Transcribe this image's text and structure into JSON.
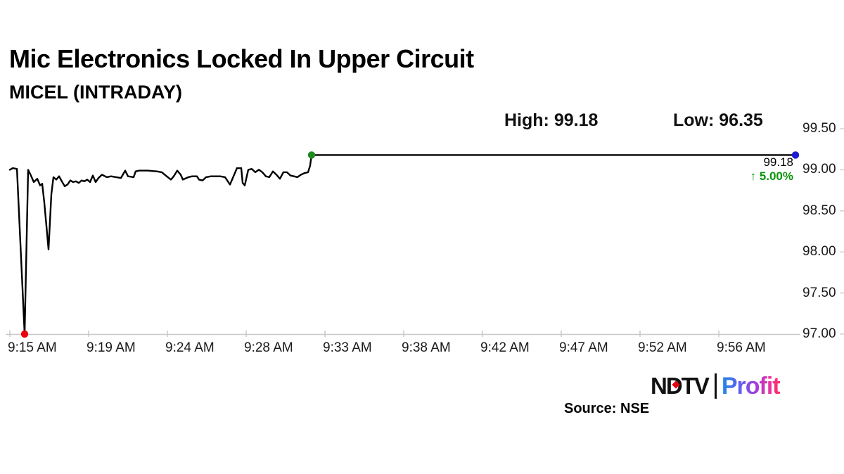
{
  "header": {
    "title": "Mic Electronics Locked In Upper Circuit",
    "subtitle": "MICEL (INTRADAY)",
    "high_label": "High: 99.18",
    "low_label": "Low: 96.35"
  },
  "annotation": {
    "price": "99.18",
    "change": "↑ 5.00%",
    "change_color": "#0c930c"
  },
  "footer": {
    "source": "Source: NSE",
    "logo": {
      "ndtv": "NDTV",
      "profit": "Profit",
      "dot_color": "#e8000d"
    }
  },
  "chart_data": {
    "type": "line",
    "title": "MICEL (INTRADAY)",
    "xlabel": "",
    "ylabel": "",
    "grid": false,
    "legend_position": "none",
    "line_color": "#000000",
    "axis_color": "#c8c8c8",
    "high": 99.18,
    "low": 96.35,
    "last_price": 99.18,
    "change_pct": "5.00%",
    "ylim": [
      97.0,
      99.5
    ],
    "y_tick_labels": [
      "99.50",
      "99.00",
      "98.50",
      "98.00",
      "97.50",
      "97.00"
    ],
    "x_tick_labels": [
      "9:15 AM",
      "9:19 AM",
      "9:24 AM",
      "9:28 AM",
      "9:33 AM",
      "9:38 AM",
      "9:42 AM",
      "9:47 AM",
      "9:52 AM",
      "9:56 AM"
    ],
    "series": [
      {
        "name": "MICEL price",
        "points": [
          [
            0.0,
            99.0
          ],
          [
            0.0036,
            99.02
          ],
          [
            0.009,
            99.01
          ],
          [
            0.0188,
            96.35
          ],
          [
            0.0233,
            99.0
          ],
          [
            0.0269,
            98.93
          ],
          [
            0.0304,
            98.85
          ],
          [
            0.0349,
            98.89
          ],
          [
            0.0385,
            98.81
          ],
          [
            0.0412,
            98.83
          ],
          [
            0.0439,
            98.6
          ],
          [
            0.0492,
            98.03
          ],
          [
            0.0528,
            98.7
          ],
          [
            0.0555,
            98.91
          ],
          [
            0.0591,
            98.88
          ],
          [
            0.0627,
            98.92
          ],
          [
            0.0662,
            98.86
          ],
          [
            0.0698,
            98.8
          ],
          [
            0.0734,
            98.82
          ],
          [
            0.077,
            98.87
          ],
          [
            0.0806,
            98.85
          ],
          [
            0.0841,
            98.86
          ],
          [
            0.0877,
            98.84
          ],
          [
            0.0913,
            98.87
          ],
          [
            0.0949,
            98.86
          ],
          [
            0.0985,
            98.88
          ],
          [
            0.1021,
            98.85
          ],
          [
            0.1056,
            98.93
          ],
          [
            0.1092,
            98.85
          ],
          [
            0.1128,
            98.9
          ],
          [
            0.1173,
            98.94
          ],
          [
            0.1235,
            98.91
          ],
          [
            0.1289,
            98.92
          ],
          [
            0.1352,
            98.91
          ],
          [
            0.1414,
            98.9
          ],
          [
            0.1468,
            98.99
          ],
          [
            0.1504,
            98.92
          ],
          [
            0.1576,
            98.91
          ],
          [
            0.1602,
            98.98
          ],
          [
            0.1647,
            98.99
          ],
          [
            0.1755,
            98.99
          ],
          [
            0.1871,
            98.98
          ],
          [
            0.1934,
            98.97
          ],
          [
            0.1996,
            98.92
          ],
          [
            0.205,
            98.88
          ],
          [
            0.2086,
            98.92
          ],
          [
            0.2131,
            98.99
          ],
          [
            0.2175,
            98.94
          ],
          [
            0.2202,
            98.88
          ],
          [
            0.2274,
            98.91
          ],
          [
            0.2319,
            98.92
          ],
          [
            0.2381,
            98.92
          ],
          [
            0.2408,
            98.88
          ],
          [
            0.2453,
            98.87
          ],
          [
            0.2498,
            98.91
          ],
          [
            0.256,
            98.92
          ],
          [
            0.2623,
            98.92
          ],
          [
            0.2677,
            98.92
          ],
          [
            0.2739,
            98.91
          ],
          [
            0.2802,
            98.82
          ],
          [
            0.2847,
            98.92
          ],
          [
            0.2891,
            99.02
          ],
          [
            0.2945,
            99.02
          ],
          [
            0.2963,
            98.84
          ],
          [
            0.299,
            98.81
          ],
          [
            0.3035,
            99.0
          ],
          [
            0.308,
            99.01
          ],
          [
            0.3124,
            98.97
          ],
          [
            0.3169,
            99.0
          ],
          [
            0.3214,
            98.97
          ],
          [
            0.3259,
            98.92
          ],
          [
            0.3303,
            98.91
          ],
          [
            0.3348,
            98.98
          ],
          [
            0.3393,
            98.94
          ],
          [
            0.3438,
            98.89
          ],
          [
            0.3482,
            98.97
          ],
          [
            0.3527,
            98.97
          ],
          [
            0.3572,
            98.93
          ],
          [
            0.3617,
            98.92
          ],
          [
            0.3661,
            98.91
          ],
          [
            0.3706,
            98.94
          ],
          [
            0.3751,
            98.96
          ],
          [
            0.3796,
            98.97
          ],
          [
            0.3822,
            99.05
          ],
          [
            0.3841,
            99.18
          ],
          [
            1.0,
            99.18
          ]
        ]
      }
    ],
    "markers": [
      {
        "name": "session-low",
        "u": 0.0188,
        "price": 96.35,
        "color": "#e8000d"
      },
      {
        "name": "upper-circuit-start",
        "u": 0.3841,
        "price": 99.18,
        "color": "#1f8c1f"
      },
      {
        "name": "last-price",
        "u": 1.0,
        "price": 99.18,
        "color": "#1d1dd1"
      }
    ]
  }
}
